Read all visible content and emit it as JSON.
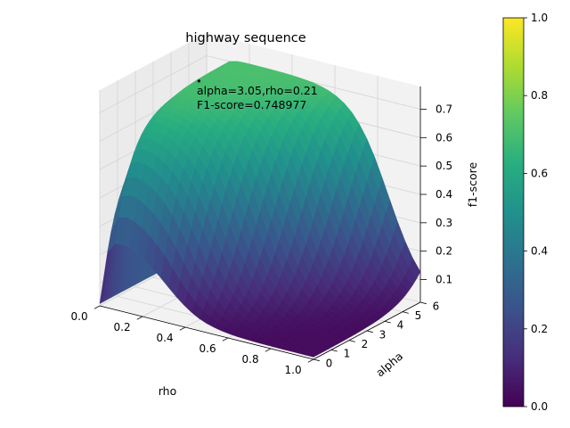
{
  "chart_data": {
    "type": "surface3d",
    "title": "highway sequence",
    "xlabel": "rho",
    "ylabel": "alpha",
    "zlabel": "f1-score",
    "xlim": [
      0,
      1
    ],
    "ylim": [
      0,
      6
    ],
    "zlim": [
      0.02,
      0.78
    ],
    "x_ticks": [
      "0.0",
      "0.2",
      "0.4",
      "0.6",
      "0.8",
      "1.0"
    ],
    "y_ticks": [
      "0",
      "1",
      "2",
      "3",
      "4",
      "5",
      "6"
    ],
    "z_ticks": [
      "0.1",
      "0.2",
      "0.3",
      "0.4",
      "0.5",
      "0.6",
      "0.7"
    ],
    "colormap": "viridis",
    "colorbar": {
      "min": 0.0,
      "max": 1.0,
      "ticks": [
        "0.0",
        "0.2",
        "0.4",
        "0.6",
        "0.8",
        "1.0"
      ]
    },
    "annotation": {
      "line1": "alpha=3.05,rho=0.21",
      "line2": "F1-score=0.748977",
      "rho": 0.21,
      "alpha": 3.05,
      "f1": 0.748977
    },
    "surface_samples": [
      {
        "rho": 0.0,
        "alpha": 0.0,
        "f1": 0.03
      },
      {
        "rho": 1.0,
        "alpha": 0.0,
        "f1": 0.03
      },
      {
        "rho": 0.0,
        "alpha": 6.0,
        "f1": 0.03
      },
      {
        "rho": 0.15,
        "alpha": 3.0,
        "f1": 0.73
      },
      {
        "rho": 0.21,
        "alpha": 3.05,
        "f1": 0.749
      },
      {
        "rho": 0.5,
        "alpha": 6.0,
        "f1": 0.72
      },
      {
        "rho": 1.0,
        "alpha": 6.0,
        "f1": 0.31
      },
      {
        "rho": 1.0,
        "alpha": 3.0,
        "f1": 0.12
      }
    ]
  }
}
